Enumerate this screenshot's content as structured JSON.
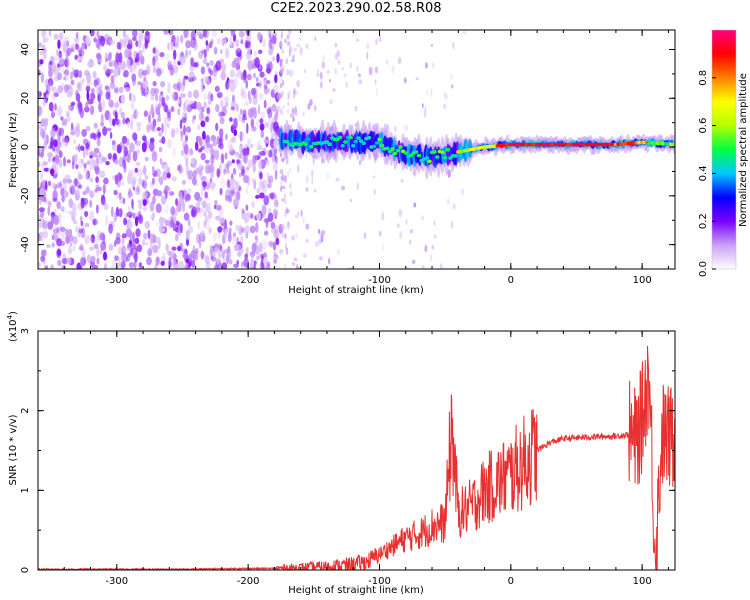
{
  "page_title": "C2E2.2023.290.02.58.R08",
  "chart_data": [
    {
      "type": "heatmap",
      "title": "C2E2.2023.290.02.58.R08",
      "xlabel": "Height of straight line (km)",
      "ylabel": "Frequency (Hz)",
      "xlim": [
        -360,
        125
      ],
      "ylim": [
        -50,
        48
      ],
      "xticks": [
        -300,
        -200,
        -100,
        0,
        100
      ],
      "yticks": [
        -40,
        -20,
        0,
        20,
        40
      ],
      "colorbar": {
        "label": "Normalized spectral amplitude",
        "range": [
          0.0,
          1.0
        ],
        "ticks": [
          0.0,
          0.2,
          0.4,
          0.6,
          0.8
        ],
        "colormap": [
          "#ffffff",
          "#c9a0f5",
          "#7a00ff",
          "#0000ff",
          "#00c8ff",
          "#00ff40",
          "#b4ff00",
          "#ffff00",
          "#ff8000",
          "#ff0000",
          "#ff0080"
        ]
      },
      "ridge": {
        "description": "narrowband signal near 0-3 Hz from about -175 km to 125 km",
        "x": [
          -175,
          -150,
          -120,
          -100,
          -80,
          -60,
          -40,
          -20,
          0,
          40,
          80,
          100,
          125
        ],
        "y": [
          3,
          2,
          2,
          2,
          -3,
          -4,
          -2,
          0,
          1,
          1,
          1,
          2,
          1
        ]
      }
    },
    {
      "type": "line",
      "xlabel": "Height of straight line (km)",
      "ylabel": "SNR (10 * v/v)",
      "y_scale_label": "(x10",
      "y_scale_exp": "4",
      "y_scale_close": ")",
      "xlim": [
        -360,
        125
      ],
      "ylim": [
        0,
        3
      ],
      "xticks": [
        -300,
        -200,
        -100,
        0,
        100
      ],
      "yticks": [
        0,
        1,
        2,
        3
      ],
      "color": "#e83030",
      "series": [
        {
          "name": "SNR",
          "x": [
            -360,
            -300,
            -250,
            -200,
            -180,
            -160,
            -140,
            -120,
            -110,
            -100,
            -90,
            -80,
            -70,
            -60,
            -50,
            -45,
            -40,
            -30,
            -20,
            -10,
            0,
            10,
            20,
            30,
            40,
            60,
            80,
            90,
            95,
            100,
            105,
            108,
            110,
            115,
            120,
            125
          ],
          "y": [
            0.01,
            0.01,
            0.01,
            0.02,
            0.02,
            0.03,
            0.04,
            0.07,
            0.1,
            0.2,
            0.3,
            0.4,
            0.45,
            0.55,
            0.6,
            1.8,
            0.7,
            0.8,
            1.0,
            1.1,
            1.2,
            1.35,
            1.5,
            1.6,
            1.65,
            1.67,
            1.68,
            1.7,
            1.6,
            1.9,
            2.5,
            1.2,
            0.1,
            1.7,
            1.65,
            1.65
          ]
        }
      ]
    }
  ]
}
